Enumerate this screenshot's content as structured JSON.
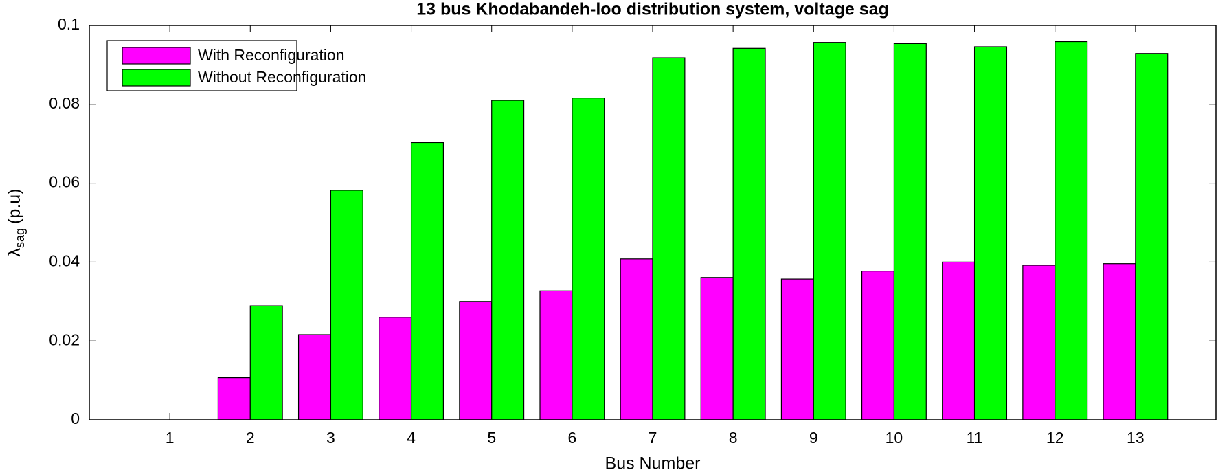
{
  "chart_data": {
    "type": "bar",
    "title": "13 bus Khodabandeh-loo distribution system, voltage sag",
    "xlabel": "Bus Number",
    "ylabel": {
      "symbol": "λ",
      "subscript": "sag",
      "unit": "(p.u)"
    },
    "categories": [
      "1",
      "2",
      "3",
      "4",
      "5",
      "6",
      "7",
      "8",
      "9",
      "10",
      "11",
      "12",
      "13"
    ],
    "series": [
      {
        "name": "With Reconfiguration",
        "color": "#ff00ff",
        "values": [
          0,
          0.0107,
          0.0216,
          0.026,
          0.03,
          0.0327,
          0.0408,
          0.0361,
          0.0357,
          0.0377,
          0.04,
          0.0392,
          0.0396
        ]
      },
      {
        "name": "Without Reconfiguration",
        "color": "#00ff00",
        "values": [
          0,
          0.0289,
          0.0582,
          0.0703,
          0.081,
          0.0816,
          0.0918,
          0.0942,
          0.0957,
          0.0954,
          0.0946,
          0.0959,
          0.0929
        ]
      }
    ],
    "ylim": [
      0,
      0.1
    ],
    "yticks": [
      0,
      0.02,
      0.04,
      0.06,
      0.08,
      0.1
    ],
    "legend": "upper-left",
    "grid": false
  }
}
